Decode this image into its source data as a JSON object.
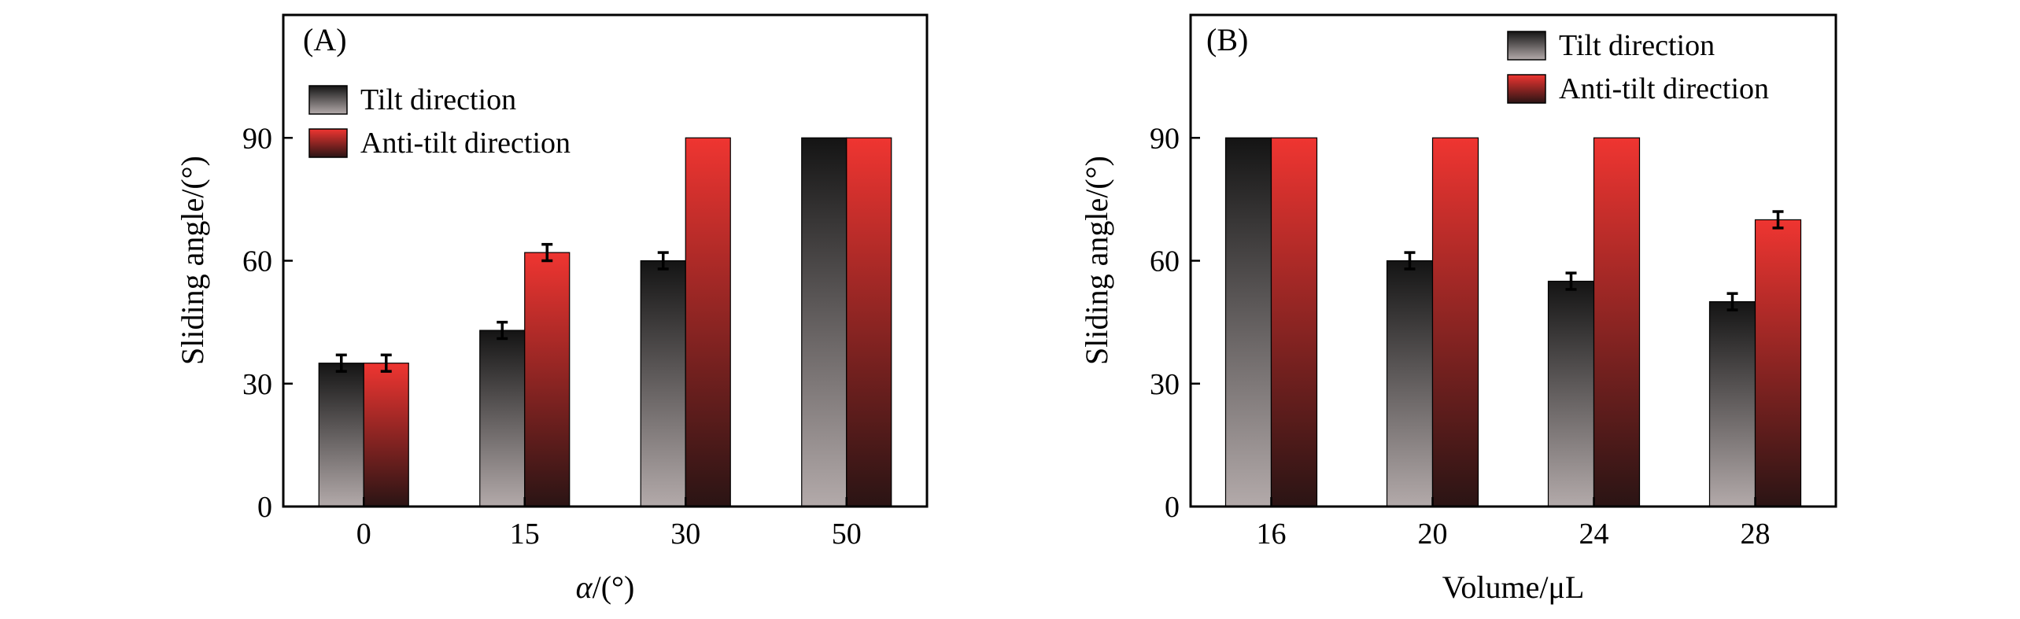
{
  "colors": {
    "tilt_top": "#141414",
    "tilt_bottom": "#b3aaaa",
    "anti_top": "#ef3531",
    "anti_bottom": "#2a1414",
    "frame": "#000000"
  },
  "chart_data": [
    {
      "type": "bar",
      "panel_label": "(A)",
      "title": "",
      "xlabel_var": "α",
      "xlabel_unit": "/(°)",
      "ylabel": "Sliding angle/(°)",
      "categories": [
        "0",
        "15",
        "30",
        "50"
      ],
      "ylim": [
        0,
        120
      ],
      "yticks": [
        0,
        30,
        60,
        90
      ],
      "ytick_labels": [
        "0",
        "30",
        "60",
        "90"
      ],
      "legend_position": "upper-left",
      "series": [
        {
          "name": "Tilt direction",
          "key": "tilt",
          "values": [
            35,
            43,
            60,
            90
          ],
          "errors": [
            2,
            2,
            2,
            0
          ]
        },
        {
          "name": "Anti-tilt direction",
          "key": "anti",
          "values": [
            35,
            62,
            90,
            90
          ],
          "errors": [
            2,
            2,
            0,
            0
          ]
        }
      ]
    },
    {
      "type": "bar",
      "panel_label": "(B)",
      "title": "",
      "xlabel": "Volume/μL",
      "ylabel": "Sliding angle/(°)",
      "categories": [
        "16",
        "20",
        "24",
        "28"
      ],
      "ylim": [
        0,
        120
      ],
      "yticks": [
        0,
        30,
        60,
        90
      ],
      "ytick_labels": [
        "0",
        "30",
        "60",
        "90"
      ],
      "legend_position": "top-right",
      "series": [
        {
          "name": "Tilt direction",
          "key": "tilt",
          "values": [
            90,
            60,
            55,
            50
          ],
          "errors": [
            0,
            2,
            2,
            2
          ]
        },
        {
          "name": "Anti-tilt direction",
          "key": "anti",
          "values": [
            90,
            90,
            90,
            70
          ],
          "errors": [
            0,
            0,
            0,
            2
          ]
        }
      ]
    }
  ]
}
